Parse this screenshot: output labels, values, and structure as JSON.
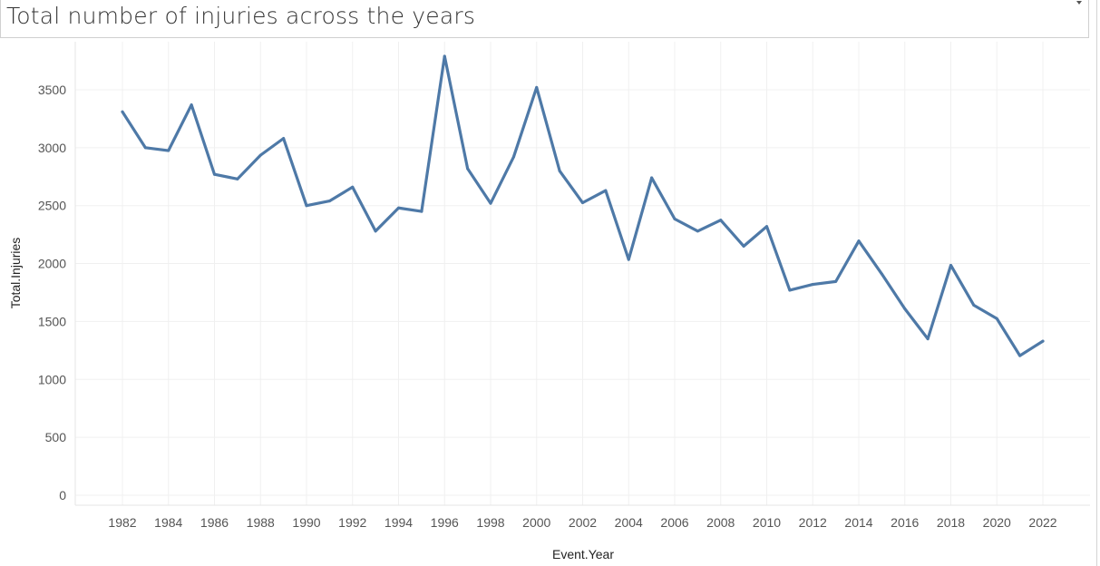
{
  "header": {
    "title": "Total number of injuries across the years",
    "dropdown_icon": "chevron-down-icon"
  },
  "chart_data": {
    "type": "line",
    "title": "Total number of injuries across the years",
    "xlabel": "Event.Year",
    "ylabel": "Total.Injuries",
    "x": [
      1982,
      1983,
      1984,
      1985,
      1986,
      1987,
      1988,
      1989,
      1990,
      1991,
      1992,
      1993,
      1994,
      1995,
      1996,
      1997,
      1998,
      1999,
      2000,
      2001,
      2002,
      2003,
      2004,
      2005,
      2006,
      2007,
      2008,
      2009,
      2010,
      2011,
      2012,
      2013,
      2014,
      2015,
      2016,
      2017,
      2018,
      2019,
      2020,
      2021,
      2022
    ],
    "series": [
      {
        "values": [
          3310,
          3000,
          2975,
          3370,
          2770,
          2730,
          2935,
          3080,
          2500,
          2540,
          2660,
          2280,
          2480,
          2450,
          3790,
          2820,
          2520,
          2920,
          3520,
          2800,
          2525,
          2630,
          2035,
          2740,
          2385,
          2280,
          2375,
          2150,
          2320,
          1770,
          1820,
          1845,
          2195,
          1910,
          1610,
          1350,
          1985,
          1640,
          1525,
          1205,
          1330
        ],
        "color": "#4e79a7"
      }
    ],
    "x_ticks": [
      "1982",
      "1984",
      "1986",
      "1988",
      "1990",
      "1992",
      "1994",
      "1996",
      "1998",
      "2000",
      "2002",
      "2004",
      "2006",
      "2008",
      "2010",
      "2012",
      "2014",
      "2016",
      "2018",
      "2020",
      "2022"
    ],
    "y_ticks": [
      "0",
      "500",
      "1000",
      "1500",
      "2000",
      "2500",
      "3000",
      "3500"
    ],
    "ylim": [
      0,
      3900
    ],
    "xlim": [
      1980,
      2024
    ],
    "grid": true,
    "legend": "none"
  }
}
